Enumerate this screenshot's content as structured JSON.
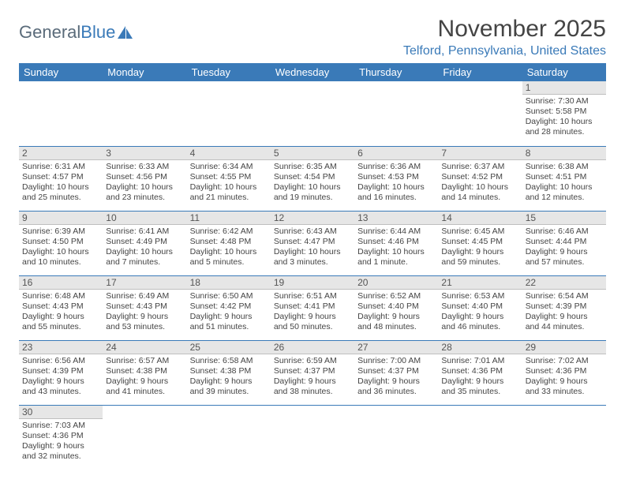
{
  "brand": {
    "part1": "General",
    "part2": "Blue"
  },
  "title": "November 2025",
  "subtitle": "Telford, Pennsylvania, United States",
  "colors": {
    "header_bg": "#3a7ab8",
    "header_text": "#ffffff",
    "daynum_bg": "#e6e6e6",
    "grid_border": "#3a7ab8",
    "text": "#444444",
    "subtitle": "#3a7ab8"
  },
  "columns": [
    "Sunday",
    "Monday",
    "Tuesday",
    "Wednesday",
    "Thursday",
    "Friday",
    "Saturday"
  ],
  "weeks": [
    [
      {
        "empty": true
      },
      {
        "empty": true
      },
      {
        "empty": true
      },
      {
        "empty": true
      },
      {
        "empty": true
      },
      {
        "empty": true
      },
      {
        "day": "1",
        "sunrise": "Sunrise: 7:30 AM",
        "sunset": "Sunset: 5:58 PM",
        "daylight": "Daylight: 10 hours and 28 minutes."
      }
    ],
    [
      {
        "day": "2",
        "sunrise": "Sunrise: 6:31 AM",
        "sunset": "Sunset: 4:57 PM",
        "daylight": "Daylight: 10 hours and 25 minutes."
      },
      {
        "day": "3",
        "sunrise": "Sunrise: 6:33 AM",
        "sunset": "Sunset: 4:56 PM",
        "daylight": "Daylight: 10 hours and 23 minutes."
      },
      {
        "day": "4",
        "sunrise": "Sunrise: 6:34 AM",
        "sunset": "Sunset: 4:55 PM",
        "daylight": "Daylight: 10 hours and 21 minutes."
      },
      {
        "day": "5",
        "sunrise": "Sunrise: 6:35 AM",
        "sunset": "Sunset: 4:54 PM",
        "daylight": "Daylight: 10 hours and 19 minutes."
      },
      {
        "day": "6",
        "sunrise": "Sunrise: 6:36 AM",
        "sunset": "Sunset: 4:53 PM",
        "daylight": "Daylight: 10 hours and 16 minutes."
      },
      {
        "day": "7",
        "sunrise": "Sunrise: 6:37 AM",
        "sunset": "Sunset: 4:52 PM",
        "daylight": "Daylight: 10 hours and 14 minutes."
      },
      {
        "day": "8",
        "sunrise": "Sunrise: 6:38 AM",
        "sunset": "Sunset: 4:51 PM",
        "daylight": "Daylight: 10 hours and 12 minutes."
      }
    ],
    [
      {
        "day": "9",
        "sunrise": "Sunrise: 6:39 AM",
        "sunset": "Sunset: 4:50 PM",
        "daylight": "Daylight: 10 hours and 10 minutes."
      },
      {
        "day": "10",
        "sunrise": "Sunrise: 6:41 AM",
        "sunset": "Sunset: 4:49 PM",
        "daylight": "Daylight: 10 hours and 7 minutes."
      },
      {
        "day": "11",
        "sunrise": "Sunrise: 6:42 AM",
        "sunset": "Sunset: 4:48 PM",
        "daylight": "Daylight: 10 hours and 5 minutes."
      },
      {
        "day": "12",
        "sunrise": "Sunrise: 6:43 AM",
        "sunset": "Sunset: 4:47 PM",
        "daylight": "Daylight: 10 hours and 3 minutes."
      },
      {
        "day": "13",
        "sunrise": "Sunrise: 6:44 AM",
        "sunset": "Sunset: 4:46 PM",
        "daylight": "Daylight: 10 hours and 1 minute."
      },
      {
        "day": "14",
        "sunrise": "Sunrise: 6:45 AM",
        "sunset": "Sunset: 4:45 PM",
        "daylight": "Daylight: 9 hours and 59 minutes."
      },
      {
        "day": "15",
        "sunrise": "Sunrise: 6:46 AM",
        "sunset": "Sunset: 4:44 PM",
        "daylight": "Daylight: 9 hours and 57 minutes."
      }
    ],
    [
      {
        "day": "16",
        "sunrise": "Sunrise: 6:48 AM",
        "sunset": "Sunset: 4:43 PM",
        "daylight": "Daylight: 9 hours and 55 minutes."
      },
      {
        "day": "17",
        "sunrise": "Sunrise: 6:49 AM",
        "sunset": "Sunset: 4:43 PM",
        "daylight": "Daylight: 9 hours and 53 minutes."
      },
      {
        "day": "18",
        "sunrise": "Sunrise: 6:50 AM",
        "sunset": "Sunset: 4:42 PM",
        "daylight": "Daylight: 9 hours and 51 minutes."
      },
      {
        "day": "19",
        "sunrise": "Sunrise: 6:51 AM",
        "sunset": "Sunset: 4:41 PM",
        "daylight": "Daylight: 9 hours and 50 minutes."
      },
      {
        "day": "20",
        "sunrise": "Sunrise: 6:52 AM",
        "sunset": "Sunset: 4:40 PM",
        "daylight": "Daylight: 9 hours and 48 minutes."
      },
      {
        "day": "21",
        "sunrise": "Sunrise: 6:53 AM",
        "sunset": "Sunset: 4:40 PM",
        "daylight": "Daylight: 9 hours and 46 minutes."
      },
      {
        "day": "22",
        "sunrise": "Sunrise: 6:54 AM",
        "sunset": "Sunset: 4:39 PM",
        "daylight": "Daylight: 9 hours and 44 minutes."
      }
    ],
    [
      {
        "day": "23",
        "sunrise": "Sunrise: 6:56 AM",
        "sunset": "Sunset: 4:39 PM",
        "daylight": "Daylight: 9 hours and 43 minutes."
      },
      {
        "day": "24",
        "sunrise": "Sunrise: 6:57 AM",
        "sunset": "Sunset: 4:38 PM",
        "daylight": "Daylight: 9 hours and 41 minutes."
      },
      {
        "day": "25",
        "sunrise": "Sunrise: 6:58 AM",
        "sunset": "Sunset: 4:38 PM",
        "daylight": "Daylight: 9 hours and 39 minutes."
      },
      {
        "day": "26",
        "sunrise": "Sunrise: 6:59 AM",
        "sunset": "Sunset: 4:37 PM",
        "daylight": "Daylight: 9 hours and 38 minutes."
      },
      {
        "day": "27",
        "sunrise": "Sunrise: 7:00 AM",
        "sunset": "Sunset: 4:37 PM",
        "daylight": "Daylight: 9 hours and 36 minutes."
      },
      {
        "day": "28",
        "sunrise": "Sunrise: 7:01 AM",
        "sunset": "Sunset: 4:36 PM",
        "daylight": "Daylight: 9 hours and 35 minutes."
      },
      {
        "day": "29",
        "sunrise": "Sunrise: 7:02 AM",
        "sunset": "Sunset: 4:36 PM",
        "daylight": "Daylight: 9 hours and 33 minutes."
      }
    ],
    [
      {
        "day": "30",
        "sunrise": "Sunrise: 7:03 AM",
        "sunset": "Sunset: 4:36 PM",
        "daylight": "Daylight: 9 hours and 32 minutes."
      },
      {
        "empty": true
      },
      {
        "empty": true
      },
      {
        "empty": true
      },
      {
        "empty": true
      },
      {
        "empty": true
      },
      {
        "empty": true
      }
    ]
  ]
}
